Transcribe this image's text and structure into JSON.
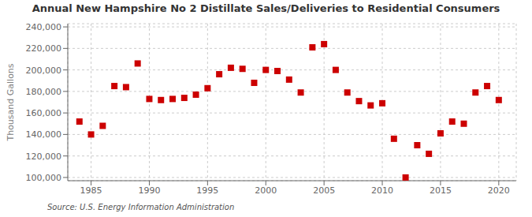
{
  "chart_data": {
    "type": "scatter",
    "title": "Annual New Hampshire No 2 Distillate Sales/Deliveries to Residential Consumers",
    "ylabel": "Thousand Gallons",
    "annotation": "Source: U.S. Energy Information Administration",
    "color": "#cc0000",
    "marker": "square",
    "grid": true,
    "xlim": [
      1983,
      2021.5
    ],
    "ylim": [
      97000,
      243000
    ],
    "xticks": [
      1985,
      1990,
      1995,
      2000,
      2005,
      2010,
      2015,
      2020
    ],
    "yticks": [
      {
        "value": 100000,
        "label": "100,000"
      },
      {
        "value": 120000,
        "label": "120,000"
      },
      {
        "value": 140000,
        "label": "140,000"
      },
      {
        "value": 160000,
        "label": "160,000"
      },
      {
        "value": 180000,
        "label": "180,000"
      },
      {
        "value": 200000,
        "label": "200,000"
      },
      {
        "value": 220000,
        "label": "220,000"
      },
      {
        "value": 240000,
        "label": "240,000"
      }
    ],
    "x": [
      1984,
      1985,
      1986,
      1987,
      1988,
      1989,
      1990,
      1991,
      1992,
      1993,
      1994,
      1995,
      1996,
      1997,
      1998,
      1999,
      2000,
      2001,
      2002,
      2003,
      2004,
      2005,
      2006,
      2007,
      2008,
      2009,
      2010,
      2011,
      2012,
      2013,
      2014,
      2015,
      2016,
      2017,
      2018,
      2019,
      2020
    ],
    "values": [
      152000,
      140000,
      148000,
      185000,
      184000,
      206000,
      173000,
      172000,
      173000,
      174000,
      177000,
      183000,
      196000,
      202000,
      201000,
      188000,
      200000,
      199000,
      191000,
      179000,
      221000,
      224000,
      200000,
      179000,
      171000,
      167000,
      169000,
      136000,
      100000,
      130000,
      122000,
      141000,
      152000,
      150000,
      179000,
      185000,
      172000
    ]
  }
}
